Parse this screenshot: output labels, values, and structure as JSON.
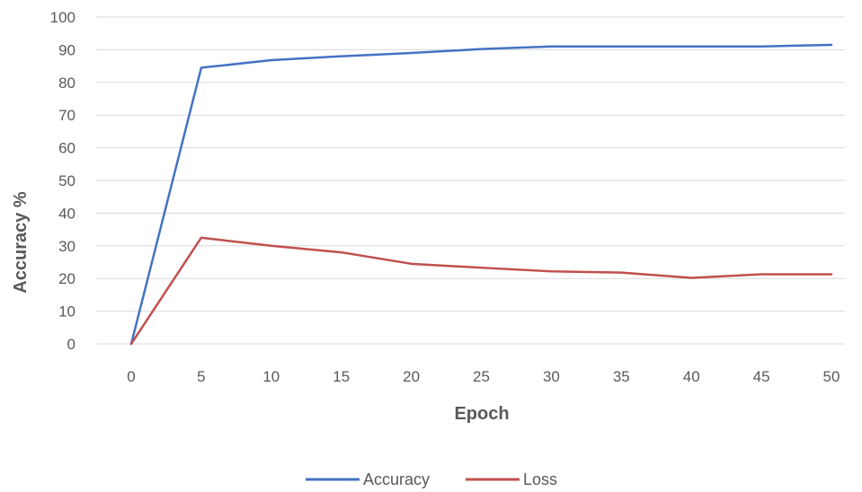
{
  "chart_data": {
    "type": "line",
    "title": "",
    "xlabel": "Epoch",
    "ylabel": "Accuracy %",
    "x": [
      0,
      5,
      10,
      15,
      20,
      25,
      30,
      35,
      40,
      45,
      50
    ],
    "xticks": [
      "0",
      "5",
      "10",
      "15",
      "20",
      "25",
      "30",
      "35",
      "40",
      "45",
      "50"
    ],
    "yticks": [
      "0",
      "10",
      "20",
      "30",
      "40",
      "50",
      "60",
      "70",
      "80",
      "90",
      "100"
    ],
    "ylim": [
      0,
      100
    ],
    "xlim": [
      0,
      50
    ],
    "grid": true,
    "legend_position": "bottom",
    "series": [
      {
        "name": "Accuracy",
        "color": "#4472c4",
        "values": [
          0,
          84.5,
          86.8,
          88,
          89,
          90.2,
          91,
          91,
          91,
          91,
          91.5
        ]
      },
      {
        "name": "Loss",
        "color": "#c0504d",
        "values": [
          0,
          32.5,
          30,
          28,
          24.5,
          23.3,
          22.2,
          21.8,
          20.2,
          21.3,
          21.3
        ]
      }
    ]
  }
}
